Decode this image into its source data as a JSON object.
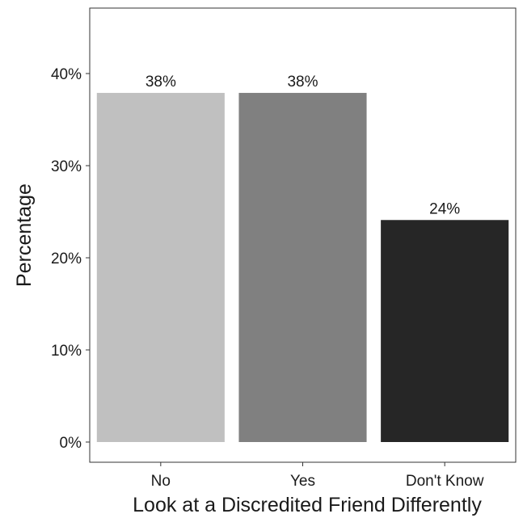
{
  "chart_data": {
    "type": "bar",
    "title": "",
    "xlabel": "Look at a Discredited Friend Differently",
    "ylabel": "Percentage",
    "categories": [
      "No",
      "Yes",
      "Don't Know"
    ],
    "values": [
      37.9,
      37.9,
      24.1
    ],
    "data_labels": [
      "38%",
      "38%",
      "24%"
    ],
    "bar_colors": [
      "#c0c0c0",
      "#808080",
      "#262626"
    ],
    "ylim": [
      0,
      47
    ],
    "yticks": [
      0,
      10,
      20,
      30,
      40
    ],
    "ytick_labels": [
      "0%",
      "10%",
      "20%",
      "30%",
      "40%"
    ],
    "grid": false,
    "legend": "none"
  }
}
